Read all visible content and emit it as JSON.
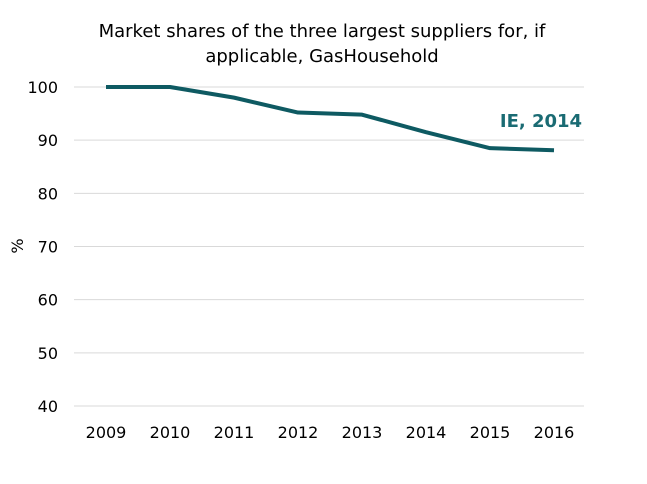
{
  "chart_data": {
    "type": "line",
    "title_lines": [
      "Market shares of the three largest suppliers for, if",
      "applicable, GasHousehold"
    ],
    "xlabel": "",
    "ylabel": "%",
    "x": [
      "2009",
      "2010",
      "2011",
      "2012",
      "2013",
      "2014",
      "2015",
      "2016"
    ],
    "series": [
      {
        "name": "IE",
        "values": [
          100,
          100,
          98,
          95.2,
          94.8,
          91.5,
          88.5,
          88.1
        ],
        "color": "#0e5a62"
      }
    ],
    "ylim": [
      40,
      100
    ],
    "yticks": [
      "100",
      "90",
      "80",
      "70",
      "60",
      "50",
      "40"
    ],
    "grid": true,
    "legend": "none",
    "annotation": {
      "text": "IE, 2014",
      "color": "#1a6b73",
      "placement": "right, above line near 2015-2016"
    }
  }
}
